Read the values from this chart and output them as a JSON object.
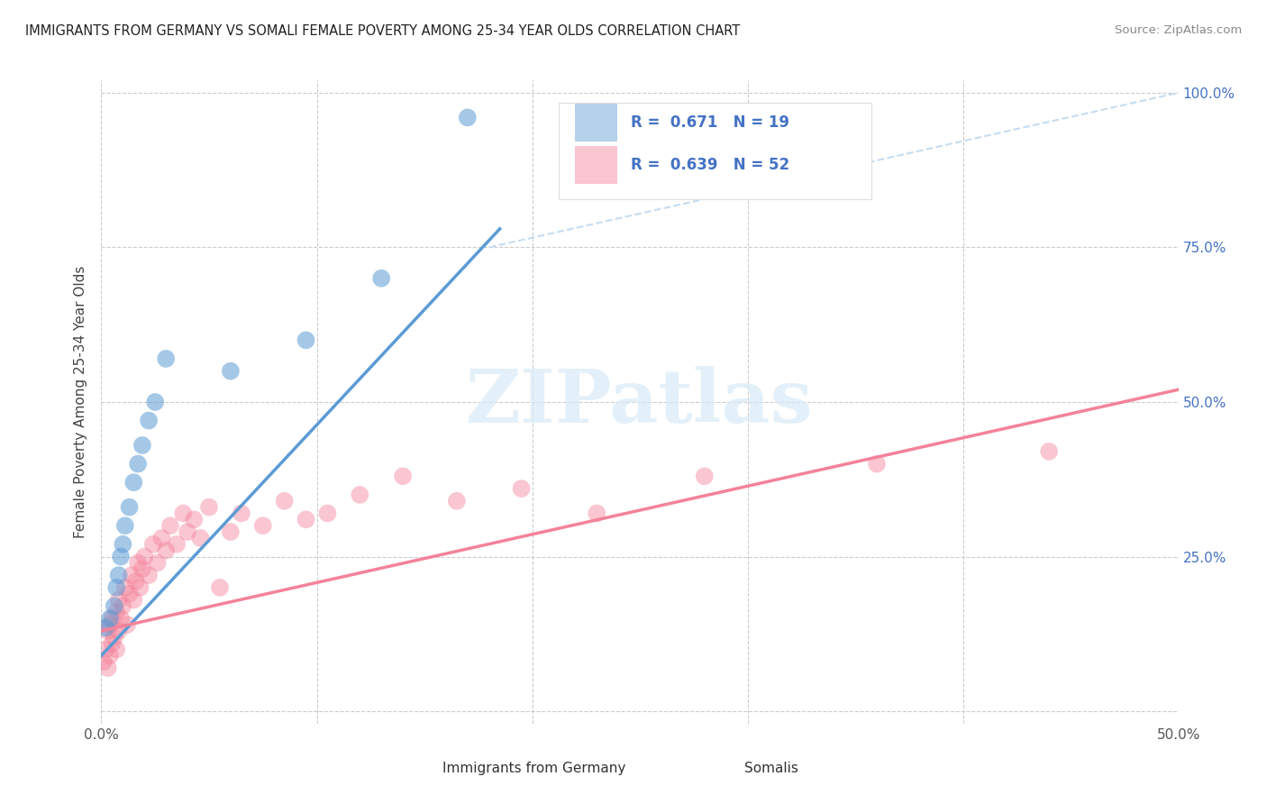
{
  "title": "IMMIGRANTS FROM GERMANY VS SOMALI FEMALE POVERTY AMONG 25-34 YEAR OLDS CORRELATION CHART",
  "source": "Source: ZipAtlas.com",
  "ylabel": "Female Poverty Among 25-34 Year Olds",
  "xlim": [
    0.0,
    0.5
  ],
  "ylim": [
    -0.02,
    1.02
  ],
  "blue_color": "#5B9BD5",
  "pink_color": "#F4829A",
  "dashed_color": "#C5DCF0",
  "watermark": "ZIPatlas",
  "germany_scatter_x": [
    0.002,
    0.004,
    0.006,
    0.007,
    0.008,
    0.009,
    0.01,
    0.011,
    0.013,
    0.015,
    0.017,
    0.019,
    0.022,
    0.025,
    0.03,
    0.06,
    0.095,
    0.13,
    0.17
  ],
  "germany_scatter_y": [
    0.135,
    0.15,
    0.17,
    0.2,
    0.22,
    0.25,
    0.27,
    0.3,
    0.33,
    0.37,
    0.4,
    0.43,
    0.47,
    0.5,
    0.57,
    0.55,
    0.6,
    0.7,
    0.96
  ],
  "somali_scatter_x": [
    0.001,
    0.002,
    0.003,
    0.003,
    0.004,
    0.004,
    0.005,
    0.005,
    0.006,
    0.007,
    0.007,
    0.008,
    0.008,
    0.009,
    0.01,
    0.011,
    0.012,
    0.013,
    0.014,
    0.015,
    0.016,
    0.017,
    0.018,
    0.019,
    0.02,
    0.022,
    0.024,
    0.026,
    0.028,
    0.03,
    0.032,
    0.035,
    0.038,
    0.04,
    0.043,
    0.046,
    0.05,
    0.055,
    0.06,
    0.065,
    0.075,
    0.085,
    0.095,
    0.105,
    0.12,
    0.14,
    0.165,
    0.195,
    0.23,
    0.28,
    0.36,
    0.44
  ],
  "somali_scatter_y": [
    0.08,
    0.1,
    0.07,
    0.13,
    0.09,
    0.14,
    0.11,
    0.15,
    0.12,
    0.1,
    0.16,
    0.13,
    0.18,
    0.15,
    0.17,
    0.2,
    0.14,
    0.19,
    0.22,
    0.18,
    0.21,
    0.24,
    0.2,
    0.23,
    0.25,
    0.22,
    0.27,
    0.24,
    0.28,
    0.26,
    0.3,
    0.27,
    0.32,
    0.29,
    0.31,
    0.28,
    0.33,
    0.2,
    0.29,
    0.32,
    0.3,
    0.34,
    0.31,
    0.32,
    0.35,
    0.38,
    0.34,
    0.36,
    0.32,
    0.38,
    0.4,
    0.42
  ],
  "blue_line_x": [
    0.0,
    0.185
  ],
  "blue_line_y": [
    0.09,
    0.78
  ],
  "pink_line_x": [
    0.0,
    0.5
  ],
  "pink_line_y": [
    0.13,
    0.52
  ],
  "dash_line_x": [
    0.18,
    0.5
  ],
  "dash_line_y": [
    0.75,
    1.0
  ]
}
